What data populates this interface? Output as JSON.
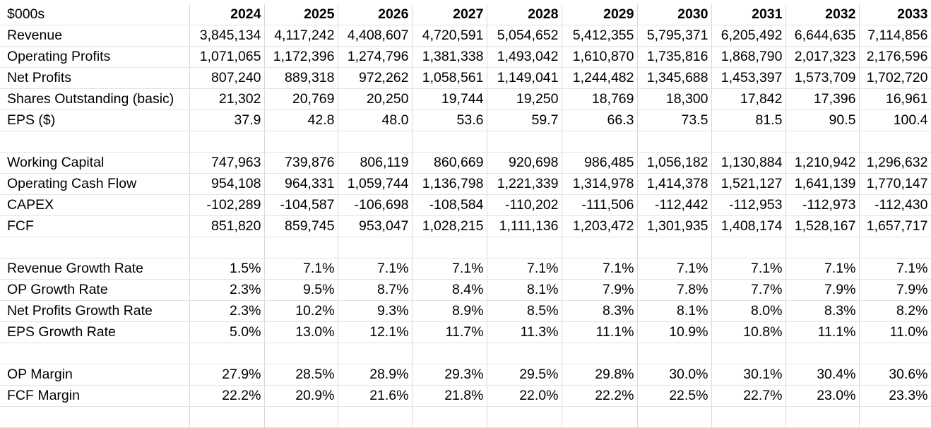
{
  "header": {
    "unit_label": "$000s",
    "years": [
      "2024",
      "2025",
      "2026",
      "2027",
      "2028",
      "2029",
      "2030",
      "2031",
      "2032",
      "2033"
    ]
  },
  "rows": [
    {
      "label": "Revenue",
      "values": [
        "3,845,134",
        "4,117,242",
        "4,408,607",
        "4,720,591",
        "5,054,652",
        "5,412,355",
        "5,795,371",
        "6,205,492",
        "6,644,635",
        "7,114,856"
      ]
    },
    {
      "label": "Operating Profits",
      "values": [
        "1,071,065",
        "1,172,396",
        "1,274,796",
        "1,381,338",
        "1,493,042",
        "1,610,870",
        "1,735,816",
        "1,868,790",
        "2,017,323",
        "2,176,596"
      ]
    },
    {
      "label": "Net Profits",
      "values": [
        "807,240",
        "889,318",
        "972,262",
        "1,058,561",
        "1,149,041",
        "1,244,482",
        "1,345,688",
        "1,453,397",
        "1,573,709",
        "1,702,720"
      ]
    },
    {
      "label": "Shares Outstanding (basic)",
      "values": [
        "21,302",
        "20,769",
        "20,250",
        "19,744",
        "19,250",
        "18,769",
        "18,300",
        "17,842",
        "17,396",
        "16,961"
      ]
    },
    {
      "label": "EPS ($)",
      "values": [
        "37.9",
        "42.8",
        "48.0",
        "53.6",
        "59.7",
        "66.3",
        "73.5",
        "81.5",
        "90.5",
        "100.4"
      ]
    },
    {
      "label": "",
      "values": [
        "",
        "",
        "",
        "",
        "",
        "",
        "",
        "",
        "",
        ""
      ]
    },
    {
      "label": "Working Capital",
      "values": [
        "747,963",
        "739,876",
        "806,119",
        "860,669",
        "920,698",
        "986,485",
        "1,056,182",
        "1,130,884",
        "1,210,942",
        "1,296,632"
      ]
    },
    {
      "label": "Operating Cash Flow",
      "values": [
        "954,108",
        "964,331",
        "1,059,744",
        "1,136,798",
        "1,221,339",
        "1,314,978",
        "1,414,378",
        "1,521,127",
        "1,641,139",
        "1,770,147"
      ]
    },
    {
      "label": "CAPEX",
      "values": [
        "-102,289",
        "-104,587",
        "-106,698",
        "-108,584",
        "-110,202",
        "-111,506",
        "-112,442",
        "-112,953",
        "-112,973",
        "-112,430"
      ]
    },
    {
      "label": "FCF",
      "values": [
        "851,820",
        "859,745",
        "953,047",
        "1,028,215",
        "1,111,136",
        "1,203,472",
        "1,301,935",
        "1,408,174",
        "1,528,167",
        "1,657,717"
      ]
    },
    {
      "label": "",
      "values": [
        "",
        "",
        "",
        "",
        "",
        "",
        "",
        "",
        "",
        ""
      ]
    },
    {
      "label": "Revenue Growth Rate",
      "values": [
        "1.5%",
        "7.1%",
        "7.1%",
        "7.1%",
        "7.1%",
        "7.1%",
        "7.1%",
        "7.1%",
        "7.1%",
        "7.1%"
      ]
    },
    {
      "label": "OP Growth Rate",
      "values": [
        "2.3%",
        "9.5%",
        "8.7%",
        "8.4%",
        "8.1%",
        "7.9%",
        "7.8%",
        "7.7%",
        "7.9%",
        "7.9%"
      ]
    },
    {
      "label": "Net Profits Growth Rate",
      "values": [
        "2.3%",
        "10.2%",
        "9.3%",
        "8.9%",
        "8.5%",
        "8.3%",
        "8.1%",
        "8.0%",
        "8.3%",
        "8.2%"
      ]
    },
    {
      "label": "EPS Growth Rate",
      "values": [
        "5.0%",
        "13.0%",
        "12.1%",
        "11.7%",
        "11.3%",
        "11.1%",
        "10.9%",
        "10.8%",
        "11.1%",
        "11.0%"
      ]
    },
    {
      "label": "",
      "values": [
        "",
        "",
        "",
        "",
        "",
        "",
        "",
        "",
        "",
        ""
      ]
    },
    {
      "label": "OP Margin",
      "values": [
        "27.9%",
        "28.5%",
        "28.9%",
        "29.3%",
        "29.5%",
        "29.8%",
        "30.0%",
        "30.1%",
        "30.4%",
        "30.6%"
      ]
    },
    {
      "label": "FCF Margin",
      "values": [
        "22.2%",
        "20.9%",
        "21.6%",
        "21.8%",
        "22.0%",
        "22.2%",
        "22.5%",
        "22.7%",
        "23.0%",
        "23.3%"
      ]
    }
  ]
}
